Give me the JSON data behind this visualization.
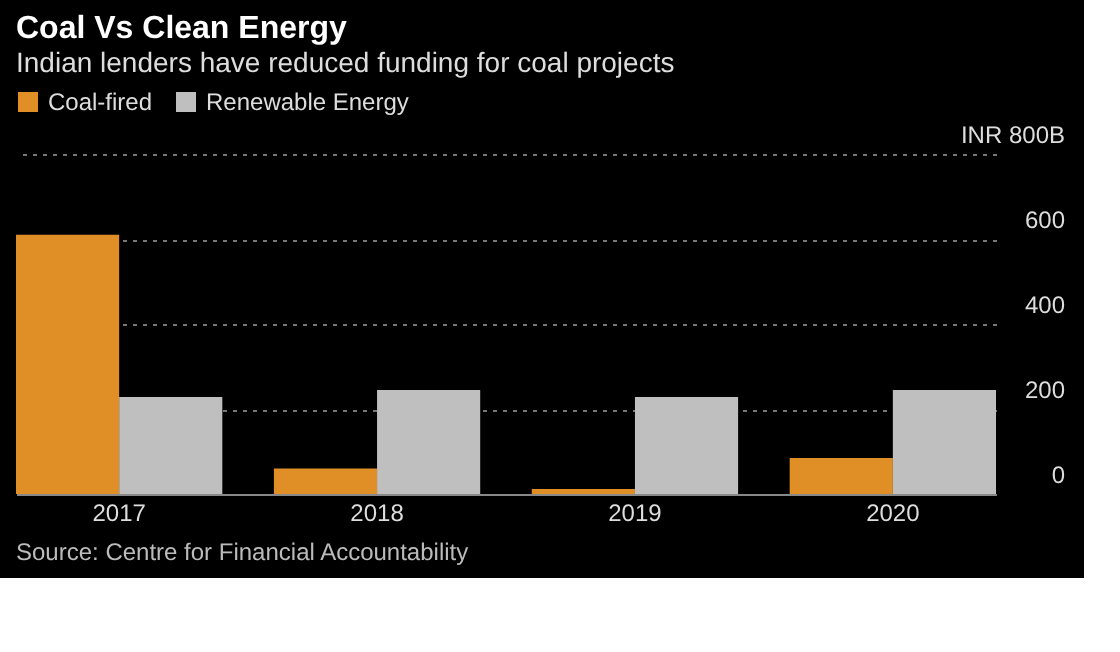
{
  "chart_data": {
    "type": "bar",
    "title": "Coal Vs Clean Energy",
    "subtitle": "Indian lenders have reduced funding for coal projects",
    "categories": [
      "2017",
      "2018",
      "2019",
      "2020"
    ],
    "series": [
      {
        "name": "Coal-fired",
        "color": "#e08f27",
        "values": [
          610,
          60,
          12,
          85
        ]
      },
      {
        "name": "Renewable Energy",
        "color": "#bfbfbf",
        "values": [
          228,
          245,
          228,
          245
        ]
      }
    ],
    "ylim": [
      0,
      800
    ],
    "yticks": [
      0,
      200,
      400,
      600,
      {
        "value": 800,
        "label": "INR 800B"
      }
    ],
    "grid": "y",
    "legend": "top left",
    "annotations": [
      "Source: Centre for Financial Accountability"
    ]
  }
}
